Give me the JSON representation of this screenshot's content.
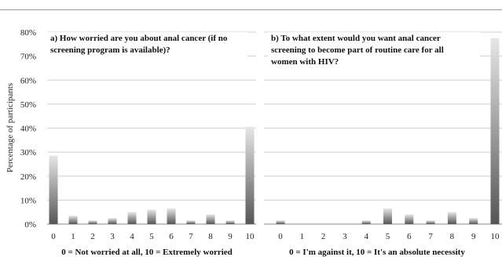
{
  "chart_data": [
    {
      "type": "bar",
      "title": "a) How worried are you about anal cancer (if no screening program is available)?",
      "title_lines": [
        "a) How worried are you about anal cancer (if no",
        "screening program is available)?"
      ],
      "xlabel": "0 = Not worried at all, 10 = Extremely worried",
      "ylabel": "Percentage of participants",
      "categories": [
        "0",
        "1",
        "2",
        "3",
        "4",
        "5",
        "6",
        "7",
        "8",
        "9",
        "10"
      ],
      "values": [
        28.5,
        3.5,
        1.5,
        2.5,
        5,
        6,
        6.5,
        1.5,
        4,
        1.5,
        40.5
      ],
      "ylim": [
        0,
        80
      ],
      "yticks": [
        "0%",
        "10%",
        "20%",
        "30%",
        "40%",
        "50%",
        "60%",
        "70%",
        "80%"
      ],
      "grid": true
    },
    {
      "type": "bar",
      "title": "b) To what extent would you want anal cancer screening to become part of routine care for all women with HIV?",
      "title_lines": [
        "b) To what extent would you want anal cancer",
        "screening to become part of routine care for all",
        "women with HIV?"
      ],
      "xlabel": "0 = I'm against it, 10 = It's an absolute necessity",
      "categories": [
        "0",
        "1",
        "2",
        "3",
        "4",
        "5",
        "6",
        "7",
        "8",
        "9",
        "10"
      ],
      "values": [
        1.5,
        0,
        0,
        0,
        1.5,
        6.5,
        4,
        1.5,
        5,
        2.5,
        77.5
      ],
      "ylim": [
        0,
        80
      ],
      "grid": true
    }
  ],
  "colors": {
    "bar_dark": "#555555",
    "bar_light": "#e6e6e6",
    "grid": "#cfcfcf",
    "axis": "#888888"
  }
}
